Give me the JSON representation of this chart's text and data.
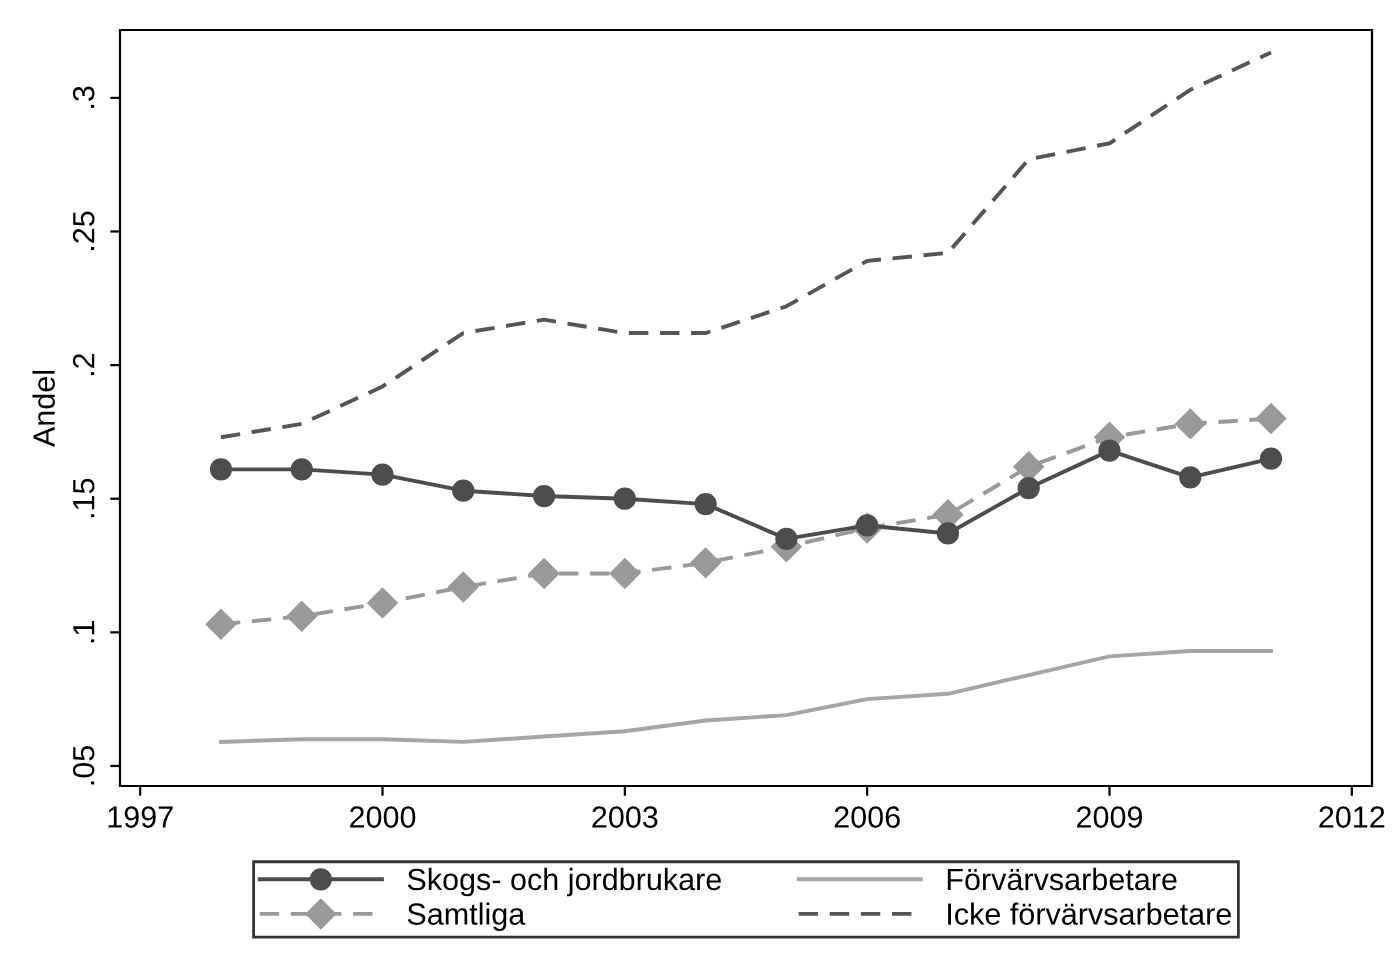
{
  "chart_data": {
    "type": "line",
    "ylabel": "Andel",
    "x": [
      1998,
      1999,
      2000,
      2001,
      2002,
      2003,
      2004,
      2005,
      2006,
      2007,
      2008,
      2009,
      2010,
      2011
    ],
    "xlim": [
      1996.75,
      2012.25
    ],
    "xticks": [
      1997,
      2000,
      2003,
      2006,
      2009,
      2012
    ],
    "ylim": [
      0.0425,
      0.3254
    ],
    "yticks": [
      {
        "value": 0.05,
        "label": ".05"
      },
      {
        "value": 0.1,
        "label": ".1"
      },
      {
        "value": 0.15,
        "label": ".15"
      },
      {
        "value": 0.2,
        "label": ".2"
      },
      {
        "value": 0.25,
        "label": ".25"
      },
      {
        "value": 0.3,
        "label": ".3"
      }
    ],
    "grid": false,
    "legend": "bottom",
    "series": [
      {
        "name": "Skogs- och jordbrukare",
        "color": "#4d4d4d",
        "marker": "circle",
        "line_style": "solid",
        "values": [
          0.161,
          0.161,
          0.159,
          0.153,
          0.151,
          0.15,
          0.148,
          0.135,
          0.14,
          0.137,
          0.154,
          0.168,
          0.158,
          0.165
        ]
      },
      {
        "name": "Samtliga",
        "color": "#999999",
        "marker": "diamond",
        "line_style": "dashed",
        "values": [
          0.103,
          0.106,
          0.111,
          0.117,
          0.122,
          0.122,
          0.126,
          0.132,
          0.139,
          0.144,
          0.162,
          0.173,
          0.178,
          0.18
        ]
      },
      {
        "name": "Förvärvsarbetare",
        "color": "#a6a6a6",
        "marker": "none",
        "line_style": "solid",
        "values": [
          0.059,
          0.06,
          0.06,
          0.059,
          0.061,
          0.063,
          0.067,
          0.069,
          0.075,
          0.077,
          0.084,
          0.091,
          0.093,
          0.093
        ]
      },
      {
        "name": "Icke förvärvsarbetare",
        "color": "#555555",
        "marker": "none",
        "line_style": "dashed",
        "values": [
          0.173,
          0.178,
          0.192,
          0.212,
          0.217,
          0.212,
          0.212,
          0.222,
          0.239,
          0.242,
          0.277,
          0.283,
          0.303,
          0.317
        ]
      }
    ]
  }
}
